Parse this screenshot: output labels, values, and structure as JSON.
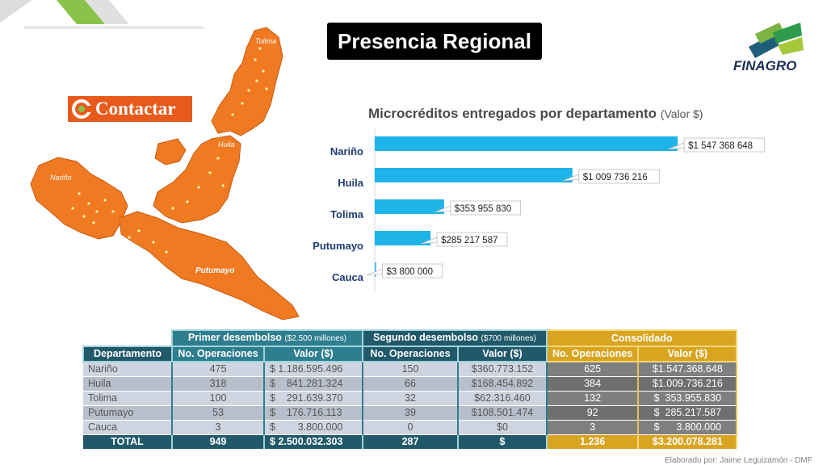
{
  "slide": {
    "title": "Presencia Regional",
    "footer": "Elaborado por: Jaime Leguizamón - DMF"
  },
  "brand": {
    "logo_text": "FINAGRO",
    "partner": "Contactar"
  },
  "map": {
    "regions": [
      "Tolima",
      "Huila",
      "Nariño",
      "Putumayo"
    ]
  },
  "chart_data": {
    "type": "bar",
    "orientation": "horizontal",
    "title": "Microcréditos entregados por departamento",
    "title_unit": "(Valor $)",
    "categories": [
      "Nariño",
      "Huila",
      "Tolima",
      "Putumayo",
      "Cauca"
    ],
    "values": [
      1547368648,
      1009736216,
      353955830,
      285217587,
      3800000
    ],
    "data_labels": [
      "$1 547 368 648",
      "$1 009 736 216",
      "$353 955 830",
      "$285 217 587",
      "$3 800 000"
    ],
    "xlim": [
      0,
      1650000000
    ],
    "grid": false,
    "colors": {
      "bar": "#1fb4e8",
      "label": "#1f3b73"
    }
  },
  "table": {
    "groups": [
      {
        "label": "Primer desembolso",
        "note": "($2.500 millones)"
      },
      {
        "label": "Segundo desembolso",
        "note": "($700 millones)"
      },
      {
        "label": "Consolidado",
        "note": ""
      }
    ],
    "headers": [
      "Departamento",
      "No. Operaciones",
      "Valor ($)",
      "No. Operaciones",
      "Valor ($)",
      "No. Operaciones",
      "Valor ($)"
    ],
    "rows": [
      [
        "Nariño",
        "475",
        "$ 1.186.595.496",
        "150",
        "$360.773.152",
        "625",
        "$1.547.368.648"
      ],
      [
        "Huila",
        "318",
        "$    841.281.324",
        "66",
        "$168.454.892",
        "384",
        "$1.009.736.216"
      ],
      [
        "Tolima",
        "100",
        "$    291.639.370",
        "32",
        "$62.316.460",
        "132",
        "$  353.955.830"
      ],
      [
        "Putumayo",
        "53",
        "$    176.716.113",
        "39",
        "$108.501.474",
        "92",
        "$  285.217.587"
      ],
      [
        "Cauca",
        "3",
        "$        3.800.000",
        "0",
        "$0",
        "3",
        "$      3.800.000"
      ]
    ],
    "total": [
      "TOTAL",
      "949",
      "$ 2.500.032.303",
      "287",
      "$",
      "1.236",
      "$3.200.078.281"
    ]
  }
}
